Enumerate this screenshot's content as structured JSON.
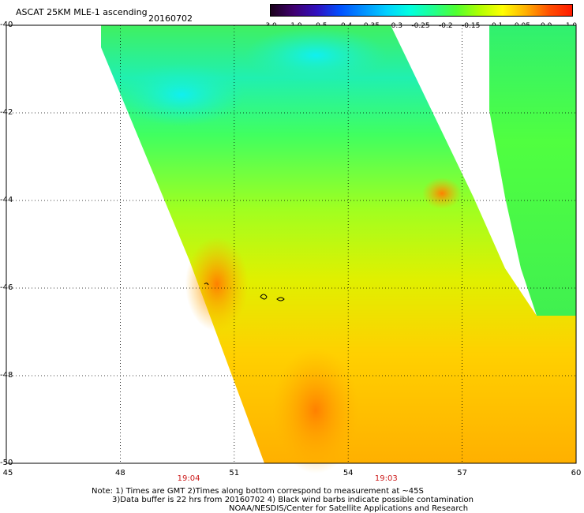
{
  "header": {
    "title": "ASCAT 25KM MLE-1 ascending",
    "date": "20160702"
  },
  "colorbar": {
    "labels": [
      "-3.0",
      "-1.0",
      "-0.5",
      "-0.4",
      "-0.35",
      "-0.3",
      "-0.25",
      "-0.2",
      "-0.15",
      "-0.1",
      "-0.05",
      "0.0",
      "1.0"
    ],
    "colors": [
      "#1a001a",
      "#400070",
      "#3010c0",
      "#0050ff",
      "#0090ff",
      "#00d0ff",
      "#00ffe0",
      "#20ff90",
      "#50ff30",
      "#b0ff00",
      "#ffff00",
      "#ffb000",
      "#ff5000",
      "#ff1a00"
    ]
  },
  "map": {
    "lat_labels": [
      "-40",
      "-42",
      "-44",
      "-46",
      "-48",
      "-50"
    ],
    "lon_labels": [
      "45",
      "48",
      "51",
      "54",
      "57",
      "60"
    ],
    "swath_times": [
      {
        "label": "19:04",
        "lon": 49.8
      },
      {
        "label": "19:03",
        "lon": 55.0
      }
    ]
  },
  "notes": {
    "line1": "Note: 1) Times are GMT 2)Times along bottom correspond to measurement at ~45S",
    "line2": "3)Data buffer is 22 hrs from 20160702 4) Black wind barbs indicate possible contamination",
    "line3": "NOAA/NESDIS/Center for Satellite Applications and Research"
  }
}
